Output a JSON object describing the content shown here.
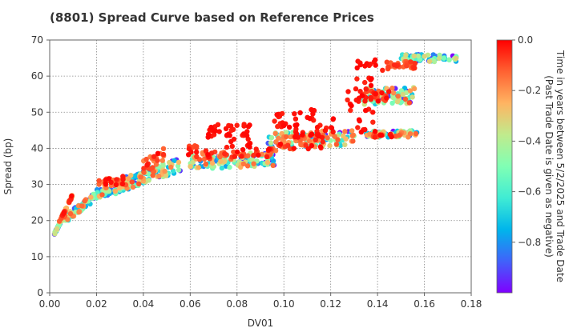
{
  "chart_data": {
    "type": "scatter",
    "title": "(8801)   Spread Curve based on Reference Prices",
    "xlabel": "DV01",
    "ylabel": "Spread (bp)",
    "xlim": [
      0,
      0.18
    ],
    "ylim": [
      0,
      70
    ],
    "xticks": [
      "0.00",
      "0.02",
      "0.04",
      "0.06",
      "0.08",
      "0.10",
      "0.12",
      "0.14",
      "0.16",
      "0.18"
    ],
    "yticks": [
      "0",
      "10",
      "20",
      "30",
      "40",
      "50",
      "60",
      "70"
    ],
    "grid": true,
    "colorbar": {
      "label_line1": "Time in years between 5/2/2025 and Trade Date",
      "label_line2": "(Past Trade Date is given as negative)",
      "range": [
        -1.0,
        0.0
      ],
      "ticks": [
        "0.0",
        "−0.2",
        "−0.4",
        "−0.6",
        "−0.8"
      ],
      "tick_values": [
        0.0,
        -0.2,
        -0.4,
        -0.6,
        -0.8
      ],
      "colormap": "rainbow"
    },
    "clusters": [
      {
        "x": [
          0.002,
          0.006
        ],
        "y": [
          16,
          21
        ],
        "tilt": 1.0,
        "t": [
          -1.0,
          -0.3
        ],
        "n": 45
      },
      {
        "x": [
          0.004,
          0.01
        ],
        "y": [
          19,
          27
        ],
        "tilt": 1.0,
        "t": [
          -0.3,
          0.0
        ],
        "n": 35
      },
      {
        "x": [
          0.006,
          0.019
        ],
        "y": [
          19,
          27
        ],
        "tilt": 0.8,
        "t": [
          -1.0,
          -0.1
        ],
        "n": 60
      },
      {
        "x": [
          0.02,
          0.033
        ],
        "y": [
          26,
          31
        ],
        "tilt": 0.5,
        "t": [
          -1.0,
          -0.1
        ],
        "n": 60
      },
      {
        "x": [
          0.021,
          0.036
        ],
        "y": [
          29,
          33
        ],
        "tilt": 0.4,
        "t": [
          -0.3,
          0.0
        ],
        "n": 30
      },
      {
        "x": [
          0.028,
          0.041
        ],
        "y": [
          27,
          34
        ],
        "tilt": 0.5,
        "t": [
          -1.0,
          -0.1
        ],
        "n": 55
      },
      {
        "x": [
          0.038,
          0.056
        ],
        "y": [
          30,
          37
        ],
        "tilt": 0.5,
        "t": [
          -1.0,
          -0.1
        ],
        "n": 70
      },
      {
        "x": [
          0.04,
          0.049
        ],
        "y": [
          33,
          40
        ],
        "tilt": 0.5,
        "t": [
          -0.2,
          0.0
        ],
        "n": 25
      },
      {
        "x": [
          0.059,
          0.063
        ],
        "y": [
          36,
          42
        ],
        "tilt": 0.3,
        "t": [
          -0.1,
          0.0
        ],
        "n": 10
      },
      {
        "x": [
          0.06,
          0.097
        ],
        "y": [
          34,
          39
        ],
        "tilt": 0.25,
        "t": [
          -1.0,
          -0.1
        ],
        "n": 120
      },
      {
        "x": [
          0.064,
          0.095
        ],
        "y": [
          37,
          40
        ],
        "tilt": 0.2,
        "t": [
          -0.2,
          0.0
        ],
        "n": 45
      },
      {
        "x": [
          0.067,
          0.073
        ],
        "y": [
          41,
          47
        ],
        "tilt": 0.0,
        "t": [
          -0.05,
          0.0
        ],
        "n": 14
      },
      {
        "x": [
          0.075,
          0.08
        ],
        "y": [
          40,
          47
        ],
        "tilt": 0.0,
        "t": [
          -0.05,
          0.0
        ],
        "n": 14
      },
      {
        "x": [
          0.082,
          0.086
        ],
        "y": [
          40,
          47
        ],
        "tilt": 0.0,
        "t": [
          -0.05,
          0.0
        ],
        "n": 14
      },
      {
        "x": [
          0.096,
          0.101
        ],
        "y": [
          45,
          50
        ],
        "tilt": 0.0,
        "t": [
          -0.05,
          0.0
        ],
        "n": 12
      },
      {
        "x": [
          0.093,
          0.13
        ],
        "y": [
          40,
          45
        ],
        "tilt": 0.15,
        "t": [
          -1.0,
          -0.1
        ],
        "n": 110
      },
      {
        "x": [
          0.094,
          0.116
        ],
        "y": [
          39,
          44
        ],
        "tilt": 0.2,
        "t": [
          -0.2,
          0.0
        ],
        "n": 40
      },
      {
        "x": [
          0.102,
          0.113
        ],
        "y": [
          43,
          51
        ],
        "tilt": 0.0,
        "t": [
          -0.05,
          0.0
        ],
        "n": 20
      },
      {
        "x": [
          0.114,
          0.122
        ],
        "y": [
          40,
          49
        ],
        "tilt": 0.0,
        "t": [
          -0.05,
          0.0
        ],
        "n": 16
      },
      {
        "x": [
          0.126,
          0.138
        ],
        "y": [
          50,
          60
        ],
        "tilt": 0.0,
        "t": [
          -0.05,
          0.0
        ],
        "n": 22
      },
      {
        "x": [
          0.131,
          0.143
        ],
        "y": [
          60,
          65
        ],
        "tilt": 0.0,
        "t": [
          -0.05,
          0.0
        ],
        "n": 12
      },
      {
        "x": [
          0.131,
          0.139
        ],
        "y": [
          44,
          49
        ],
        "tilt": 0.0,
        "t": [
          -0.05,
          0.0
        ],
        "n": 8
      },
      {
        "x": [
          0.134,
          0.156
        ],
        "y": [
          52,
          57
        ],
        "tilt": 0.1,
        "t": [
          -1.0,
          -0.1
        ],
        "n": 80
      },
      {
        "x": [
          0.133,
          0.145
        ],
        "y": [
          53,
          56
        ],
        "tilt": 0.0,
        "t": [
          -0.1,
          0.0
        ],
        "n": 20
      },
      {
        "x": [
          0.135,
          0.157
        ],
        "y": [
          43,
          45
        ],
        "tilt": 0.05,
        "t": [
          -1.0,
          -0.1
        ],
        "n": 70
      },
      {
        "x": [
          0.138,
          0.15
        ],
        "y": [
          43,
          44
        ],
        "tilt": 0.0,
        "t": [
          -0.15,
          0.0
        ],
        "n": 15
      },
      {
        "x": [
          0.144,
          0.156
        ],
        "y": [
          62,
          64
        ],
        "tilt": 0.0,
        "t": [
          -0.15,
          -0.05
        ],
        "n": 30
      },
      {
        "x": [
          0.15,
          0.174
        ],
        "y": [
          64,
          66
        ],
        "tilt": 0.0,
        "t": [
          -1.0,
          -0.3
        ],
        "n": 70
      }
    ]
  }
}
